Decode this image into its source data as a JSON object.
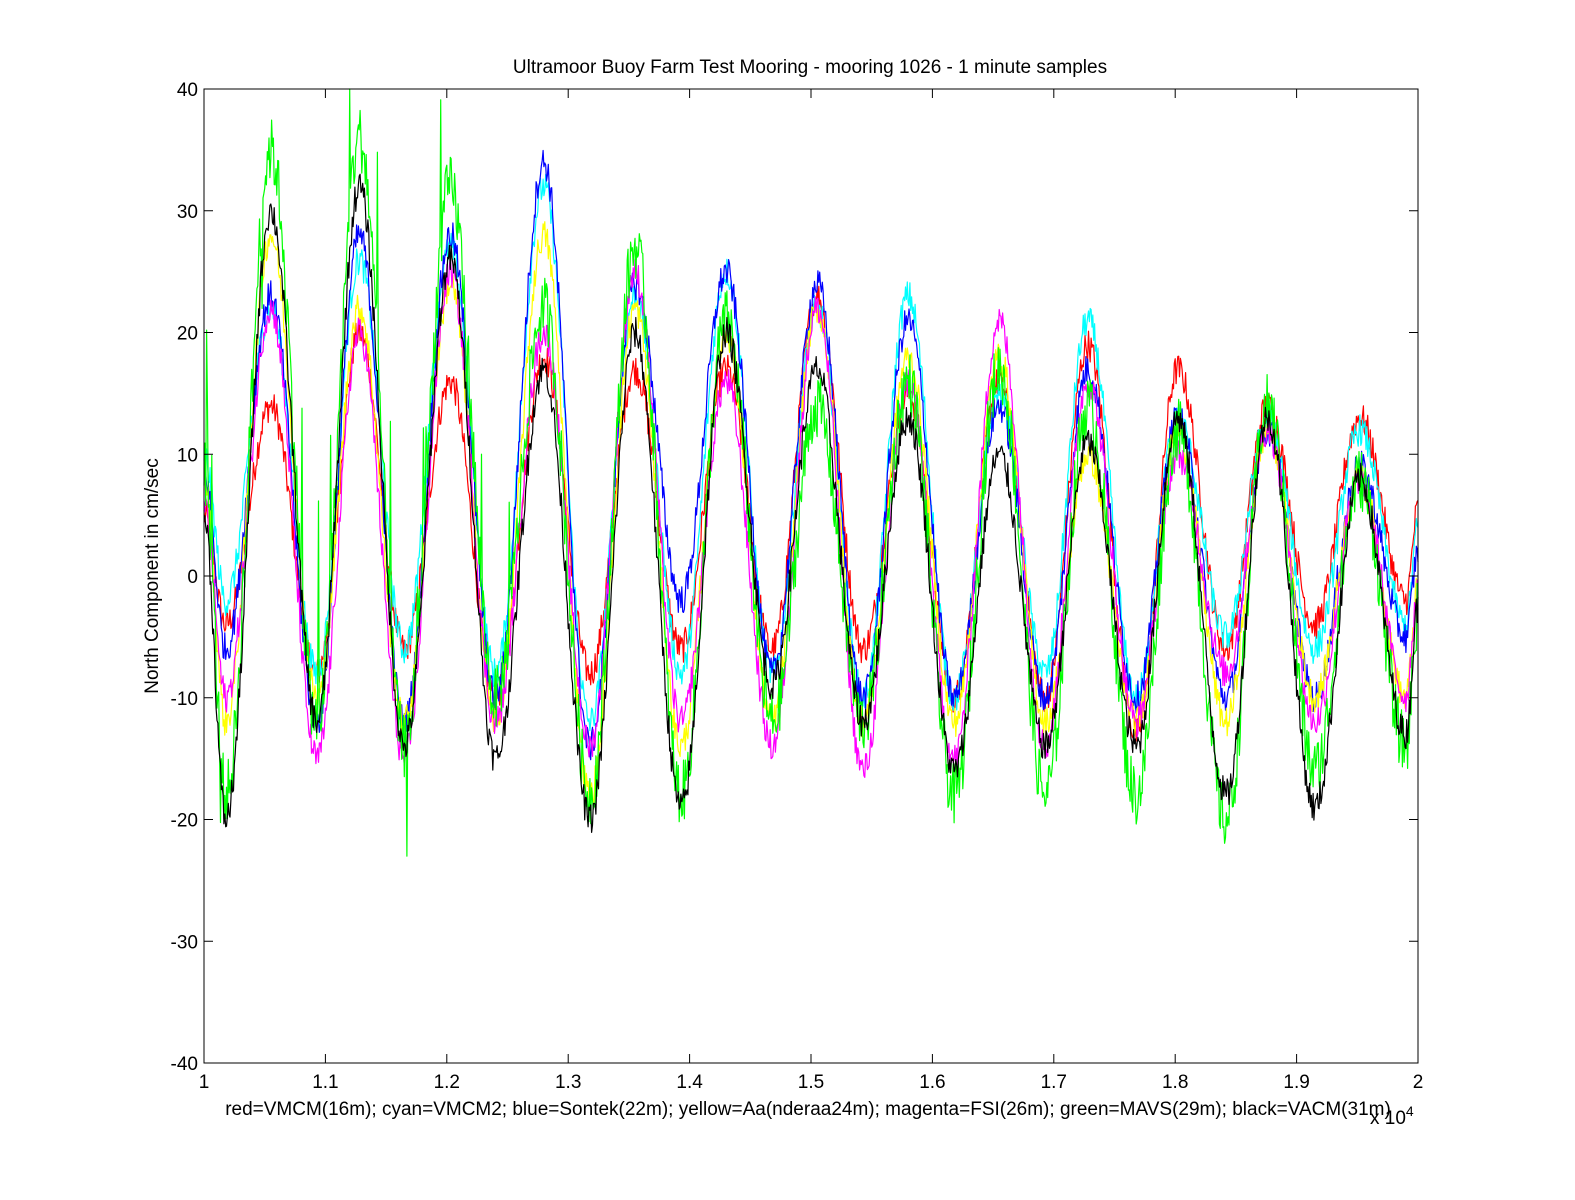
{
  "chart_data": {
    "type": "line",
    "title": "Ultramoor Buoy Farm Test Mooring - mooring 1026 - 1 minute samples",
    "ylabel": "North Component in cm/sec",
    "xlabel": "red=VMCM(16m); cyan=VMCM2; blue=Sontek(22m); yellow=Aa(nderaa24m); magenta=FSI(26m); green=MAVS(29m); black=VACM(31m)",
    "x_exponent_label": "x 10",
    "x_exponent": "4",
    "xlim": [
      1,
      2
    ],
    "ylim": [
      -40,
      40
    ],
    "x_ticks": [
      "1",
      "1.1",
      "1.2",
      "1.3",
      "1.4",
      "1.5",
      "1.6",
      "1.7",
      "1.8",
      "1.9",
      "2"
    ],
    "y_ticks": [
      "40",
      "30",
      "20",
      "10",
      "0",
      "-10",
      "-20",
      "-30",
      "-40"
    ],
    "grid": false,
    "x_peaks": [
      1.055,
      1.128,
      1.203,
      1.28,
      1.355,
      1.43,
      1.505,
      1.58,
      1.655,
      1.728,
      1.802,
      1.876,
      1.952
    ],
    "x_troughs": [
      1.018,
      1.093,
      1.165,
      1.24,
      1.318,
      1.393,
      1.468,
      1.543,
      1.618,
      1.693,
      1.768,
      1.842,
      1.915,
      1.99
    ],
    "series": [
      {
        "name": "VMCM(16m)",
        "color": "#ff0000",
        "peaks": [
          14,
          20,
          16,
          18,
          17,
          17,
          23,
          15,
          16,
          19,
          17,
          14,
          13
        ],
        "troughs": [
          -4,
          -8,
          -6,
          -10,
          -8,
          -6,
          -6,
          -6,
          -10,
          -10,
          -13,
          -6,
          -4,
          -2
        ]
      },
      {
        "name": "VMCM2",
        "color": "#00ffff",
        "peaks": [
          22,
          26,
          27,
          32,
          23,
          25,
          22,
          23,
          15,
          21,
          13,
          13,
          12
        ],
        "troughs": [
          -2,
          -8,
          -6,
          -8,
          -12,
          -8,
          -8,
          -10,
          -10,
          -8,
          -10,
          -5,
          -6,
          -4
        ]
      },
      {
        "name": "Sontek(22m)",
        "color": "#0000ff",
        "peaks": [
          23,
          28,
          28,
          34,
          24,
          25,
          24,
          21,
          14,
          17,
          13,
          12,
          9
        ],
        "troughs": [
          -6,
          -12,
          -12,
          -10,
          -14,
          -2,
          -8,
          -10,
          -10,
          -10,
          -10,
          -10,
          -10,
          -5
        ]
      },
      {
        "name": "Aa(nderaa24m)",
        "color": "#ffff00",
        "peaks": [
          28,
          22,
          24,
          28,
          22,
          20,
          22,
          18,
          18,
          10,
          12,
          12,
          8
        ],
        "troughs": [
          -12,
          -10,
          -12,
          -12,
          -18,
          -14,
          -12,
          -12,
          -12,
          -12,
          -12,
          -12,
          -10,
          -10
        ]
      },
      {
        "name": "FSI(26m)",
        "color": "#ff00ff",
        "peaks": [
          22,
          20,
          25,
          20,
          25,
          16,
          22,
          16,
          21,
          16,
          10,
          12,
          8
        ],
        "troughs": [
          -10,
          -15,
          -15,
          -12,
          -14,
          -12,
          -14,
          -16,
          -15,
          -14,
          -12,
          -8,
          -12,
          -10
        ]
      },
      {
        "name": "MAVS(29m)",
        "color": "#00ff00",
        "peaks": [
          35,
          36,
          32,
          22,
          27,
          21,
          14,
          16,
          17,
          14,
          12,
          14,
          8
        ],
        "troughs": [
          -18,
          -12,
          -14,
          -10,
          -18,
          -18,
          -12,
          -12,
          -18,
          -18,
          -18,
          -20,
          -16,
          -14
        ]
      },
      {
        "name": "VACM(31m)",
        "color": "#000000",
        "peaks": [
          30,
          32,
          26,
          17,
          20,
          20,
          17,
          13,
          10,
          11,
          13,
          13,
          8
        ],
        "troughs": [
          -20,
          -12,
          -14,
          -15,
          -20,
          -19,
          -9,
          -12,
          -16,
          -14,
          -14,
          -18,
          -19,
          -13
        ]
      }
    ]
  }
}
